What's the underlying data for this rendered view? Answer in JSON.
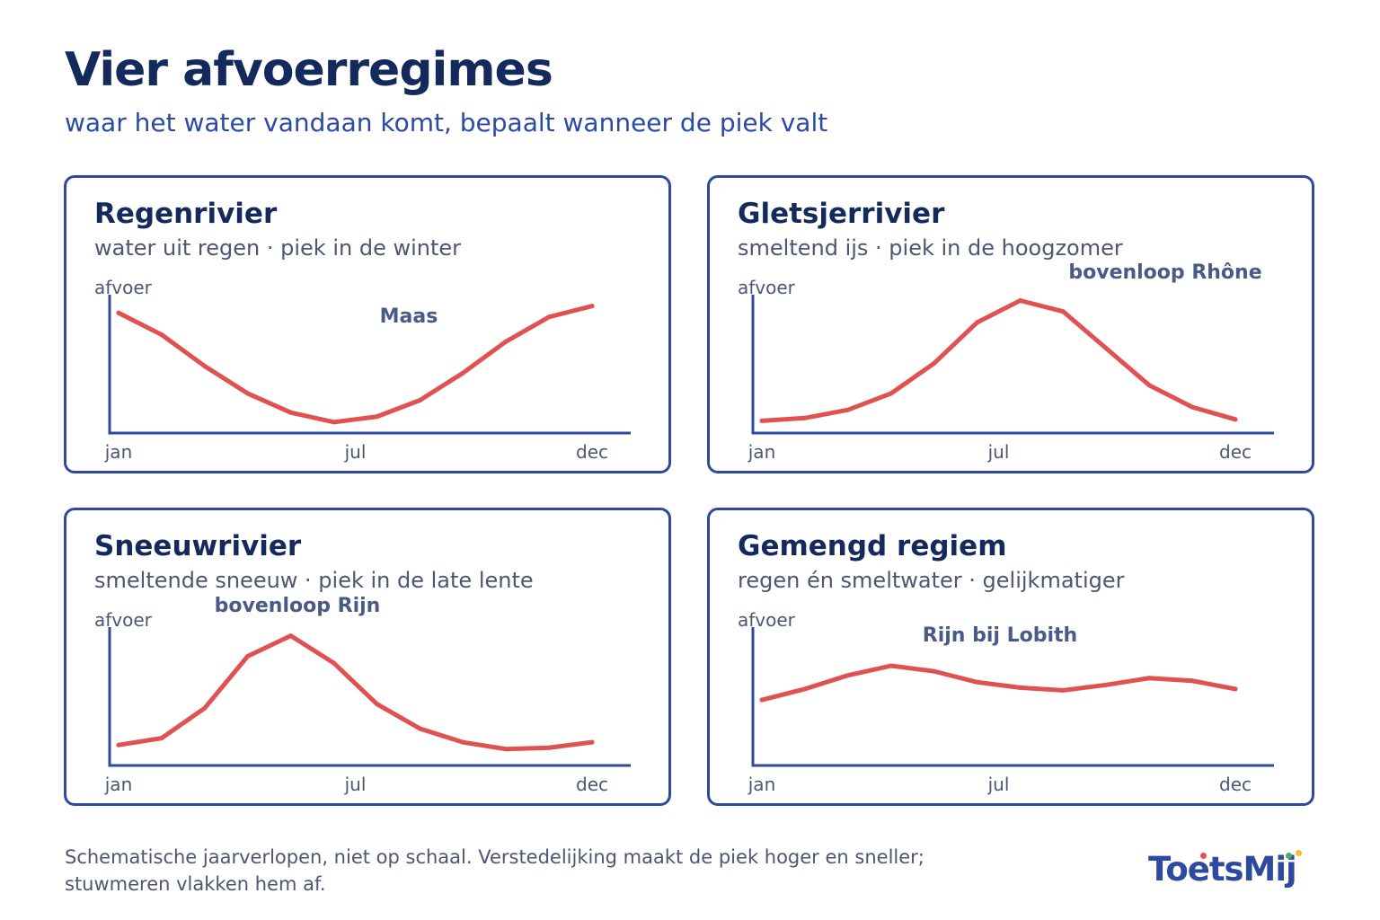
{
  "title": "Vier afvoerregimes",
  "subtitle": "waar het water vandaan komt, bepaalt wanneer de piek valt",
  "colors": {
    "line": "#e05252",
    "axis": "#2e4a9e",
    "frame": "#2e4a9e",
    "title": "#142a5c",
    "subtitle": "#2a4aa6"
  },
  "footnote_line1": "Schematische jaarverlopen, niet op schaal. Verstedelijking maakt de piek hoger en sneller;",
  "footnote_line2": "stuwmeren vlakken hem af.",
  "logo": "ToetsMij",
  "chart_data": [
    {
      "type": "line",
      "title": "Regenrivier",
      "subtitle": "water uit regen · piek in de winter",
      "ylabel": "afvoer",
      "annotation": "Maas",
      "x": [
        1,
        2,
        3,
        4,
        5,
        6,
        7,
        8,
        9,
        10,
        11,
        12
      ],
      "x_ticks": [
        {
          "x": 1,
          "label": "jan"
        },
        {
          "x": 6.5,
          "label": "jul"
        },
        {
          "x": 12,
          "label": "dec"
        }
      ],
      "series": [
        {
          "values": [
            0.88,
            0.72,
            0.49,
            0.29,
            0.15,
            0.08,
            0.12,
            0.24,
            0.44,
            0.67,
            0.85,
            0.93
          ]
        }
      ]
    },
    {
      "type": "line",
      "title": "Gletsjerrivier",
      "subtitle": "smeltend ijs · piek in de hoogzomer",
      "ylabel": "afvoer",
      "annotation": "bovenloop Rhône",
      "x": [
        1,
        2,
        3,
        4,
        5,
        6,
        7,
        8,
        9,
        10,
        11,
        12
      ],
      "x_ticks": [
        {
          "x": 1,
          "label": "jan"
        },
        {
          "x": 6.5,
          "label": "jul"
        },
        {
          "x": 12,
          "label": "dec"
        }
      ],
      "series": [
        {
          "values": [
            0.09,
            0.11,
            0.17,
            0.29,
            0.51,
            0.81,
            0.97,
            0.89,
            0.62,
            0.35,
            0.19,
            0.1
          ]
        }
      ]
    },
    {
      "type": "line",
      "title": "Sneeuwrivier",
      "subtitle": "smeltende sneeuw · piek in de late lente",
      "ylabel": "afvoer",
      "annotation": "bovenloop Rijn",
      "x": [
        1,
        2,
        3,
        4,
        5,
        6,
        7,
        8,
        9,
        10,
        11,
        12
      ],
      "x_ticks": [
        {
          "x": 1,
          "label": "jan"
        },
        {
          "x": 6.5,
          "label": "jul"
        },
        {
          "x": 12,
          "label": "dec"
        }
      ],
      "series": [
        {
          "values": [
            0.15,
            0.2,
            0.42,
            0.8,
            0.95,
            0.75,
            0.45,
            0.27,
            0.17,
            0.12,
            0.13,
            0.17
          ]
        }
      ]
    },
    {
      "type": "line",
      "title": "Gemengd regiem",
      "subtitle": "regen én smeltwater · gelijkmatiger",
      "ylabel": "afvoer",
      "annotation": "Rijn bij Lobith",
      "x": [
        1,
        2,
        3,
        4,
        5,
        6,
        7,
        8,
        9,
        10,
        11,
        12
      ],
      "x_ticks": [
        {
          "x": 1,
          "label": "jan"
        },
        {
          "x": 6.5,
          "label": "jul"
        },
        {
          "x": 12,
          "label": "dec"
        }
      ],
      "series": [
        {
          "values": [
            0.48,
            0.56,
            0.66,
            0.73,
            0.69,
            0.61,
            0.57,
            0.55,
            0.59,
            0.64,
            0.62,
            0.56
          ]
        }
      ]
    }
  ]
}
